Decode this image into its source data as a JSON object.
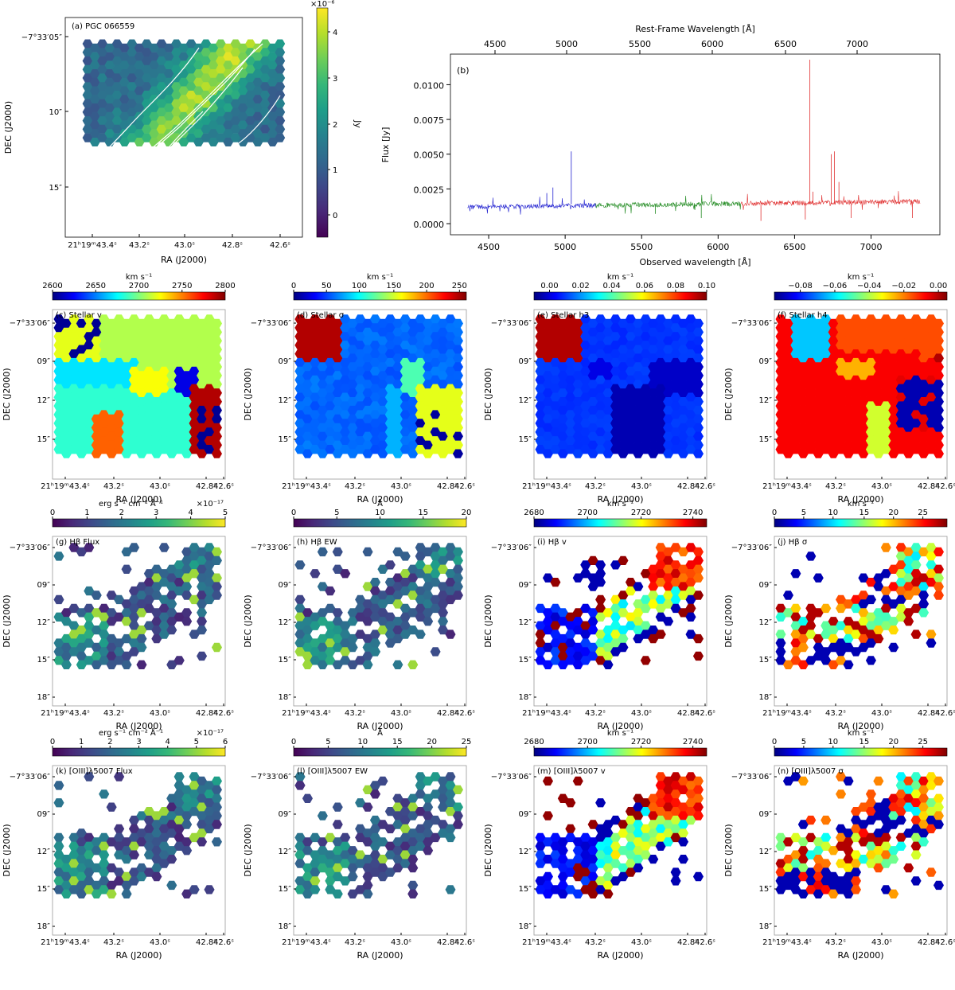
{
  "figure": {
    "cmaps": {
      "viridis": [
        "#440154",
        "#482878",
        "#3e4989",
        "#31688e",
        "#26828e",
        "#1f9e89",
        "#35b779",
        "#6ece58",
        "#b5de2b",
        "#fde725"
      ],
      "jet": [
        "#00007f",
        "#0000ff",
        "#007fff",
        "#00ffff",
        "#7fff7f",
        "#ffff00",
        "#ff7f00",
        "#ff0000",
        "#7f0000"
      ]
    },
    "panel_a": {
      "tag": "(a) PGC 066559",
      "xlabel": "RA (J2000)",
      "ylabel": "DEC (J2000)",
      "xticks": [
        "21ʰ19ᵐ43.4ˢ",
        "43.2ˢ",
        "43.0ˢ",
        "42.8ˢ",
        "42.6ˢ"
      ],
      "yticks": [
        "−7°33′05″",
        "10″",
        "15″"
      ],
      "colorbar": {
        "label": "Jy",
        "exponent": "×10⁻⁶",
        "ticks": [
          "4",
          "3",
          "2",
          "1",
          "0"
        ]
      }
    },
    "panel_b": {
      "tag": "(b)",
      "xlabel_bottom": "Observed wavelength [Å]",
      "xlabel_top": "Rest-Frame Wavelength [Å]",
      "ylabel": "Flux [Jy]",
      "xticks": [
        "4500",
        "5000",
        "5500",
        "6000",
        "6500",
        "7000"
      ],
      "top_ticks": [
        "4500",
        "5000",
        "5500",
        "6000",
        "6500",
        "7000"
      ],
      "yticks": [
        "0.0000",
        "0.0025",
        "0.0050",
        "0.0075",
        "0.0100"
      ],
      "series_colors": [
        "#2020d0",
        "#208a20",
        "#e03030"
      ]
    },
    "maps": {
      "xlabel": "RA (J2000)",
      "ylabel": "DEC (J2000)",
      "xticks": [
        "21ʰ19ᵐ43.4ˢ",
        "43.2ˢ",
        "43.0ˢ",
        "42.8ˢ",
        "42.6ˢ"
      ],
      "yticks_stellar": [
        "−7°33′06″",
        "09″",
        "12″",
        "15″"
      ],
      "yticks_gas": [
        "−7°33′06″",
        "09″",
        "12″",
        "15″",
        "18″"
      ]
    },
    "panels": [
      {
        "id": "c",
        "tag": "(c) Stellar v",
        "unit": "km s⁻¹",
        "cmap": "jet",
        "ticks": [
          "2600",
          "2650",
          "2700",
          "2750",
          "2800"
        ],
        "exponent": ""
      },
      {
        "id": "d",
        "tag": "(d) Stellar σ",
        "unit": "km s⁻¹",
        "cmap": "jet",
        "ticks": [
          "0",
          "50",
          "100",
          "150",
          "200",
          "250"
        ],
        "exponent": ""
      },
      {
        "id": "e",
        "tag": "(e) Stellar h3",
        "unit": "km s⁻¹",
        "cmap": "jet",
        "ticks": [
          "0.00",
          "0.02",
          "0.04",
          "0.06",
          "0.08",
          "0.10"
        ],
        "exponent": ""
      },
      {
        "id": "f",
        "tag": "(f) Stellar h4",
        "unit": "km s⁻¹",
        "cmap": "jet",
        "ticks": [
          "−0.08",
          "−0.06",
          "−0.04",
          "−0.02",
          "0.00"
        ],
        "exponent": ""
      },
      {
        "id": "g",
        "tag": "(g) Hβ Flux",
        "unit": "erg s⁻¹ cm⁻² Å⁻¹",
        "cmap": "viridis",
        "ticks": [
          "0",
          "1",
          "2",
          "3",
          "4",
          "5"
        ],
        "exponent": "×10⁻¹⁷"
      },
      {
        "id": "h",
        "tag": "(h) Hβ EW",
        "unit": "Å",
        "cmap": "viridis",
        "ticks": [
          "0",
          "5",
          "10",
          "15",
          "20"
        ],
        "exponent": ""
      },
      {
        "id": "i",
        "tag": "(i) Hβ v",
        "unit": "km s⁻¹",
        "cmap": "jet",
        "ticks": [
          "2680",
          "2700",
          "2720",
          "2740"
        ],
        "exponent": ""
      },
      {
        "id": "j",
        "tag": "(j) Hβ σ",
        "unit": "km s⁻¹",
        "cmap": "jet",
        "ticks": [
          "0",
          "5",
          "10",
          "15",
          "20",
          "25"
        ],
        "exponent": ""
      },
      {
        "id": "k",
        "tag": "(k) [OIII]λ5007 Flux",
        "unit": "erg s⁻¹ cm⁻² Å⁻¹",
        "cmap": "viridis",
        "ticks": [
          "0",
          "1",
          "2",
          "3",
          "4",
          "5",
          "6"
        ],
        "exponent": "×10⁻¹⁷"
      },
      {
        "id": "l",
        "tag": "(l) [OIII]λ5007 EW",
        "unit": "Å",
        "cmap": "viridis",
        "ticks": [
          "0",
          "5",
          "10",
          "15",
          "20",
          "25"
        ],
        "exponent": ""
      },
      {
        "id": "m",
        "tag": "(m) [OIII]λ5007 v",
        "unit": "km s⁻¹",
        "cmap": "jet",
        "ticks": [
          "2680",
          "2700",
          "2720",
          "2740"
        ],
        "exponent": ""
      },
      {
        "id": "n",
        "tag": "(n) [OIII]λ5007 σ",
        "unit": "km s⁻¹",
        "cmap": "jet",
        "ticks": [
          "0",
          "5",
          "10",
          "15",
          "20",
          "25"
        ],
        "exponent": ""
      }
    ]
  },
  "chart_data": [
    {
      "panel": "a",
      "type": "heatmap",
      "title": "(a) PGC 066559",
      "xlabel": "RA (J2000)",
      "ylabel": "DEC (J2000)",
      "colorbar_label": "Jy",
      "colorbar_range": [
        -5e-07,
        4.5e-06
      ],
      "note_values": "continuum image with white contours"
    },
    {
      "panel": "b",
      "type": "line",
      "title": "(b)",
      "xlabel": "Observed wavelength [Å]",
      "x2label": "Rest-Frame Wavelength [Å]",
      "ylabel": "Flux [Jy]",
      "xlim": [
        4250,
        7450
      ],
      "ylim": [
        -0.0008,
        0.0122
      ],
      "series": [
        {
          "x": [
            4360,
            4500,
            4700,
            4900,
            5000,
            5040,
            5100,
            5200
          ],
          "y": [
            0.0012,
            0.0012,
            0.0013,
            0.0013,
            0.0014,
            0.0052,
            0.0014,
            0.0014
          ]
        },
        {
          "x": [
            5200,
            5400,
            5600,
            5800,
            6000,
            6150
          ],
          "y": [
            0.0014,
            0.0014,
            0.0015,
            0.0015,
            0.0016,
            0.0016
          ]
        },
        {
          "x": [
            6150,
            6300,
            6500,
            6560,
            6600,
            6620,
            6740,
            6760,
            7000,
            7300
          ],
          "y": [
            0.0016,
            0.0015,
            0.0015,
            0.0015,
            0.0118,
            0.0025,
            0.005,
            0.0052,
            0.0015,
            0.0016
          ]
        }
      ]
    },
    {
      "panel": "c",
      "type": "heatmap",
      "title": "(c) Stellar v",
      "colorbar_range": [
        2600,
        2800
      ],
      "unit": "km s⁻¹"
    },
    {
      "panel": "d",
      "type": "heatmap",
      "title": "(d) Stellar σ",
      "colorbar_range": [
        0,
        260
      ],
      "unit": "km s⁻¹"
    },
    {
      "panel": "e",
      "type": "heatmap",
      "title": "(e) Stellar h3",
      "colorbar_range": [
        -0.01,
        0.1
      ],
      "unit": "km s⁻¹"
    },
    {
      "panel": "f",
      "type": "heatmap",
      "title": "(f) Stellar h4",
      "colorbar_range": [
        -0.095,
        0.005
      ],
      "unit": "km s⁻¹"
    },
    {
      "panel": "g",
      "type": "heatmap",
      "title": "(g) Hβ Flux",
      "colorbar_range": [
        0,
        5e-17
      ],
      "unit": "erg s⁻¹ cm⁻² Å⁻¹"
    },
    {
      "panel": "h",
      "type": "heatmap",
      "title": "(h) Hβ EW",
      "colorbar_range": [
        0,
        20
      ],
      "unit": "Å"
    },
    {
      "panel": "i",
      "type": "heatmap",
      "title": "(i) Hβ v",
      "colorbar_range": [
        2680,
        2745
      ],
      "unit": "km s⁻¹"
    },
    {
      "panel": "j",
      "type": "heatmap",
      "title": "(j) Hβ σ",
      "colorbar_range": [
        0,
        29
      ],
      "unit": "km s⁻¹"
    },
    {
      "panel": "k",
      "type": "heatmap",
      "title": "(k) [OIII]λ5007 Flux",
      "colorbar_range": [
        0,
        6e-17
      ],
      "unit": "erg s⁻¹ cm⁻² Å⁻¹"
    },
    {
      "panel": "l",
      "type": "heatmap",
      "title": "(l) [OIII]λ5007 EW",
      "colorbar_range": [
        0,
        25
      ],
      "unit": "Å"
    },
    {
      "panel": "m",
      "type": "heatmap",
      "title": "(m) [OIII]λ5007 v",
      "colorbar_range": [
        2680,
        2745
      ],
      "unit": "km s⁻¹"
    },
    {
      "panel": "n",
      "type": "heatmap",
      "title": "(n) [OIII]λ5007 σ",
      "colorbar_range": [
        0,
        29
      ],
      "unit": "km s⁻¹"
    }
  ]
}
